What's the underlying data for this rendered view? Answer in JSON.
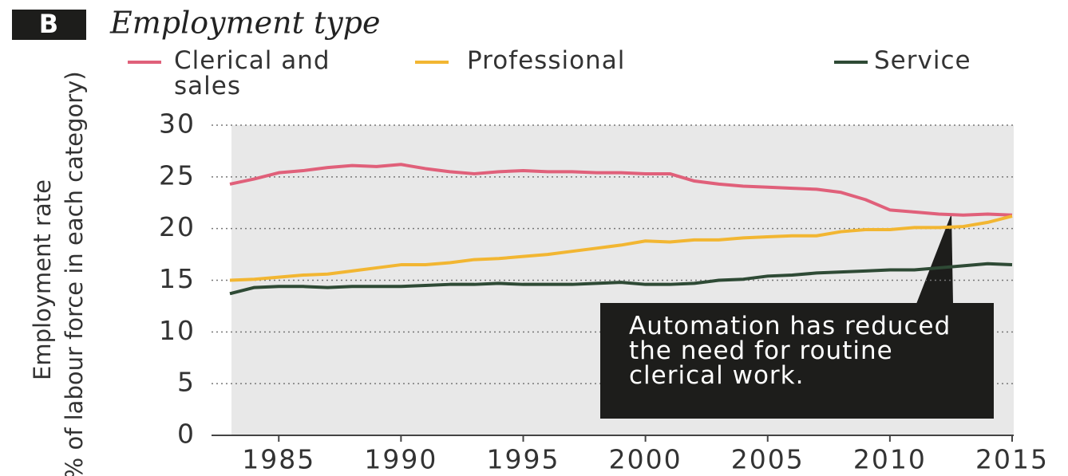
{
  "chart_data": {
    "type": "line",
    "panel": "B",
    "title": "Employment type",
    "ylabel": [
      "Employment rate",
      "(% of labour force in each category)"
    ],
    "annotation": "Automation has reduced the need for routine clerical work.",
    "x": [
      1983,
      1984,
      1985,
      1986,
      1987,
      1988,
      1989,
      1990,
      1991,
      1992,
      1993,
      1994,
      1995,
      1996,
      1997,
      1998,
      1999,
      2000,
      2001,
      2002,
      2003,
      2004,
      2005,
      2006,
      2007,
      2008,
      2009,
      2010,
      2011,
      2012,
      2013,
      2014,
      2015
    ],
    "series": [
      {
        "name": "Clerical and sales",
        "color": "#e0607a",
        "values": [
          24.3,
          24.8,
          25.4,
          25.6,
          25.9,
          26.1,
          26.0,
          26.2,
          25.8,
          25.5,
          25.3,
          25.5,
          25.6,
          25.5,
          25.5,
          25.4,
          25.4,
          25.3,
          25.3,
          24.6,
          24.3,
          24.1,
          24.0,
          23.9,
          23.8,
          23.5,
          22.8,
          21.8,
          21.6,
          21.4,
          21.3,
          21.4,
          21.3
        ]
      },
      {
        "name": "Professional",
        "color": "#f2b632",
        "values": [
          15.0,
          15.1,
          15.3,
          15.5,
          15.6,
          15.9,
          16.2,
          16.5,
          16.5,
          16.7,
          17.0,
          17.1,
          17.3,
          17.5,
          17.8,
          18.1,
          18.4,
          18.8,
          18.7,
          18.9,
          18.9,
          19.1,
          19.2,
          19.3,
          19.3,
          19.7,
          19.9,
          19.9,
          20.1,
          20.1,
          20.2,
          20.6,
          21.2
        ]
      },
      {
        "name": "Service",
        "color": "#2e4a35",
        "values": [
          13.7,
          14.3,
          14.4,
          14.4,
          14.3,
          14.4,
          14.4,
          14.4,
          14.5,
          14.6,
          14.6,
          14.7,
          14.6,
          14.6,
          14.6,
          14.7,
          14.8,
          14.6,
          14.6,
          14.7,
          15.0,
          15.1,
          15.4,
          15.5,
          15.7,
          15.8,
          15.9,
          16.0,
          16.0,
          16.2,
          16.4,
          16.6,
          16.5
        ]
      }
    ],
    "xlim": [
      1983,
      2015
    ],
    "xticks": [
      1985,
      1990,
      1995,
      2000,
      2005,
      2010,
      2015
    ],
    "ylim": [
      0,
      30
    ],
    "yticks": [
      0,
      5,
      10,
      15,
      20,
      25,
      30
    ],
    "grid": true
  }
}
